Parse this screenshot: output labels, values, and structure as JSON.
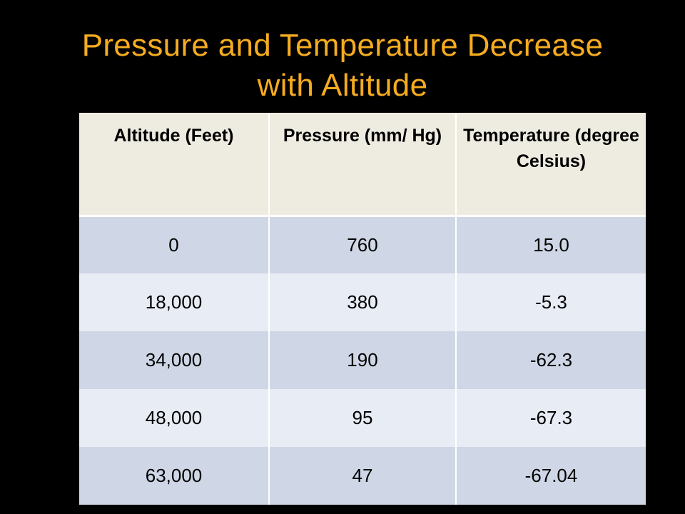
{
  "slide": {
    "title_line1": "Pressure and Temperature Decrease",
    "title_line2": "with Altitude"
  },
  "table": {
    "headers": [
      "Altitude (Feet)",
      "Pressure (mm/ Hg)",
      "Temperature (degree Celsius)"
    ],
    "rows": [
      [
        "0",
        "760",
        "15.0"
      ],
      [
        "18,000",
        "380",
        "-5.3"
      ],
      [
        "34,000",
        "190",
        "-62.3"
      ],
      [
        "48,000",
        "95",
        "-67.3"
      ],
      [
        "63,000",
        "47",
        "-67.04"
      ]
    ]
  },
  "colors": {
    "title": "#f5ac1f",
    "background": "#000000",
    "header_fill": "#eeebe0",
    "band_dark": "#cfd6e5",
    "band_light": "#e8ecf4"
  }
}
